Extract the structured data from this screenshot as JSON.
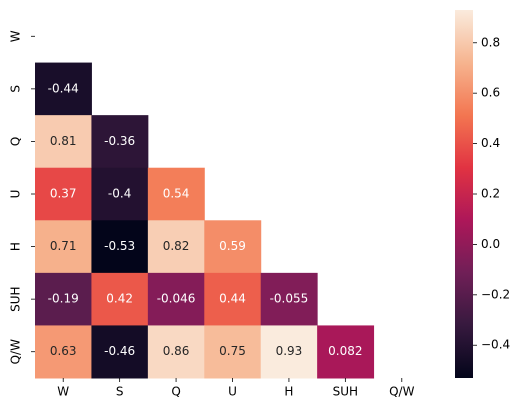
{
  "chart_data": {
    "type": "heatmap",
    "categories": [
      "W",
      "S",
      "Q",
      "U",
      "H",
      "SUH",
      "Q/W"
    ],
    "values": [
      [
        null,
        null,
        null,
        null,
        null,
        null,
        null
      ],
      [
        -0.44,
        null,
        null,
        null,
        null,
        null,
        null
      ],
      [
        0.81,
        -0.36,
        null,
        null,
        null,
        null,
        null
      ],
      [
        0.37,
        -0.4,
        0.54,
        null,
        null,
        null,
        null
      ],
      [
        0.71,
        -0.53,
        0.82,
        0.59,
        null,
        null,
        null
      ],
      [
        -0.19,
        0.42,
        -0.046,
        0.44,
        -0.055,
        null,
        null
      ],
      [
        0.63,
        -0.46,
        0.86,
        0.75,
        0.93,
        0.082,
        null
      ]
    ],
    "colormap": [
      "#03051a",
      "#36193e",
      "#701f57",
      "#ad1759",
      "#e13342",
      "#f37651",
      "#f6b48f",
      "#faebdd"
    ],
    "clim": [
      -0.53,
      0.93
    ],
    "cticks": [
      {
        "value": -0.4,
        "label": "−0.4"
      },
      {
        "value": -0.2,
        "label": "−0.2"
      },
      {
        "value": 0.0,
        "label": "0.0"
      },
      0.2,
      0.4,
      0.6,
      0.8
    ]
  }
}
